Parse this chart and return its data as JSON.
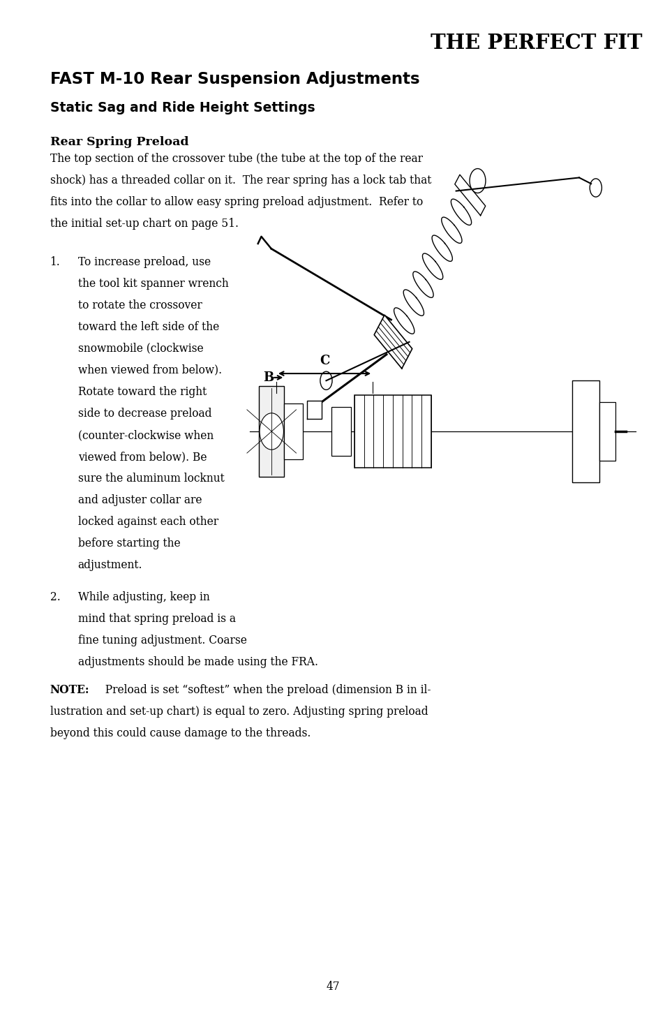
{
  "bg_color": "#ffffff",
  "title": "THE PERFECT FIT",
  "heading1": "FAST M-10 Rear Suspension Adjustments",
  "heading2": "Static Sag and Ride Height Settings",
  "subheading": "Rear Spring Preload",
  "body1_lines": [
    "The top section of the crossover tube (the tube at the top of the rear",
    "shock) has a threaded collar on it.  The rear spring has a lock tab that",
    "fits into the collar to allow easy spring preload adjustment.  Refer to",
    "the initial set-up chart on page 51."
  ],
  "item1_label": "1.",
  "item1_lines": [
    "To increase preload, use",
    "the tool kit spanner wrench",
    "to rotate the crossover",
    "toward the left side of the",
    "snowmobile (clockwise",
    "when viewed from below).",
    "Rotate toward the right",
    "side to decrease preload",
    "(counter-clockwise when",
    "viewed from below). Be",
    "sure the aluminum locknut",
    "and adjuster collar are",
    "locked against each other",
    "before starting the",
    "adjustment."
  ],
  "item2_label": "2.",
  "item2_lines": [
    "While adjusting, keep in",
    "mind that spring preload is a",
    "fine tuning adjustment. Coarse",
    "adjustments should be made using the FRA."
  ],
  "note_bold": "NOTE:",
  "note_lines": [
    "  Preload is set “softest” when the preload (dimension B in il-",
    "lustration and set-up chart) is equal to zero. Adjusting spring preload",
    "beyond this could cause damage to the threads."
  ],
  "page_number": "47"
}
